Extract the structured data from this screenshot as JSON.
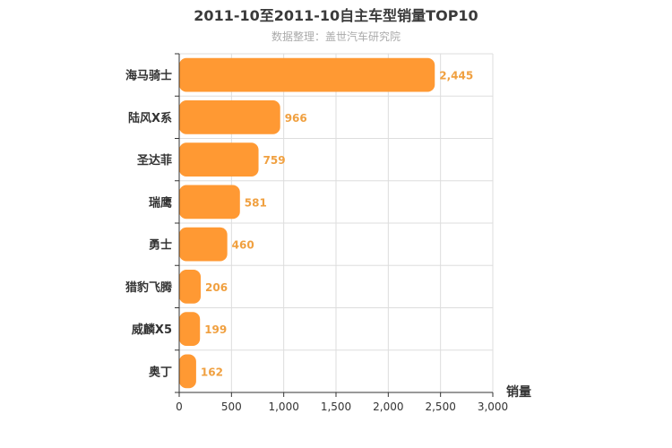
{
  "chart_data": {
    "type": "bar",
    "orientation": "horizontal",
    "title": "2011-10至2011-10自主车型销量TOP10",
    "subtitle": "数据整理：盖世汽车研究院",
    "categories": [
      "海马骑士",
      "陆风X系",
      "圣达菲",
      "瑞鹰",
      "勇士",
      "猎豹飞腾",
      "威麟X5",
      "奥丁"
    ],
    "values": [
      2445,
      966,
      759,
      581,
      460,
      206,
      199,
      162
    ],
    "value_labels": [
      "2,445",
      "966",
      "759",
      "581",
      "460",
      "206",
      "199",
      "162"
    ],
    "xlabel": "销量",
    "ylabel": "",
    "xlim": [
      0,
      3000
    ],
    "ticks": [
      0,
      500,
      1000,
      1500,
      2000,
      2500,
      3000
    ],
    "tick_labels": [
      "0",
      "500",
      "1,000",
      "1,500",
      "2,000",
      "2,500",
      "3,000"
    ],
    "grid": true,
    "bar_color": "#ff9933"
  }
}
